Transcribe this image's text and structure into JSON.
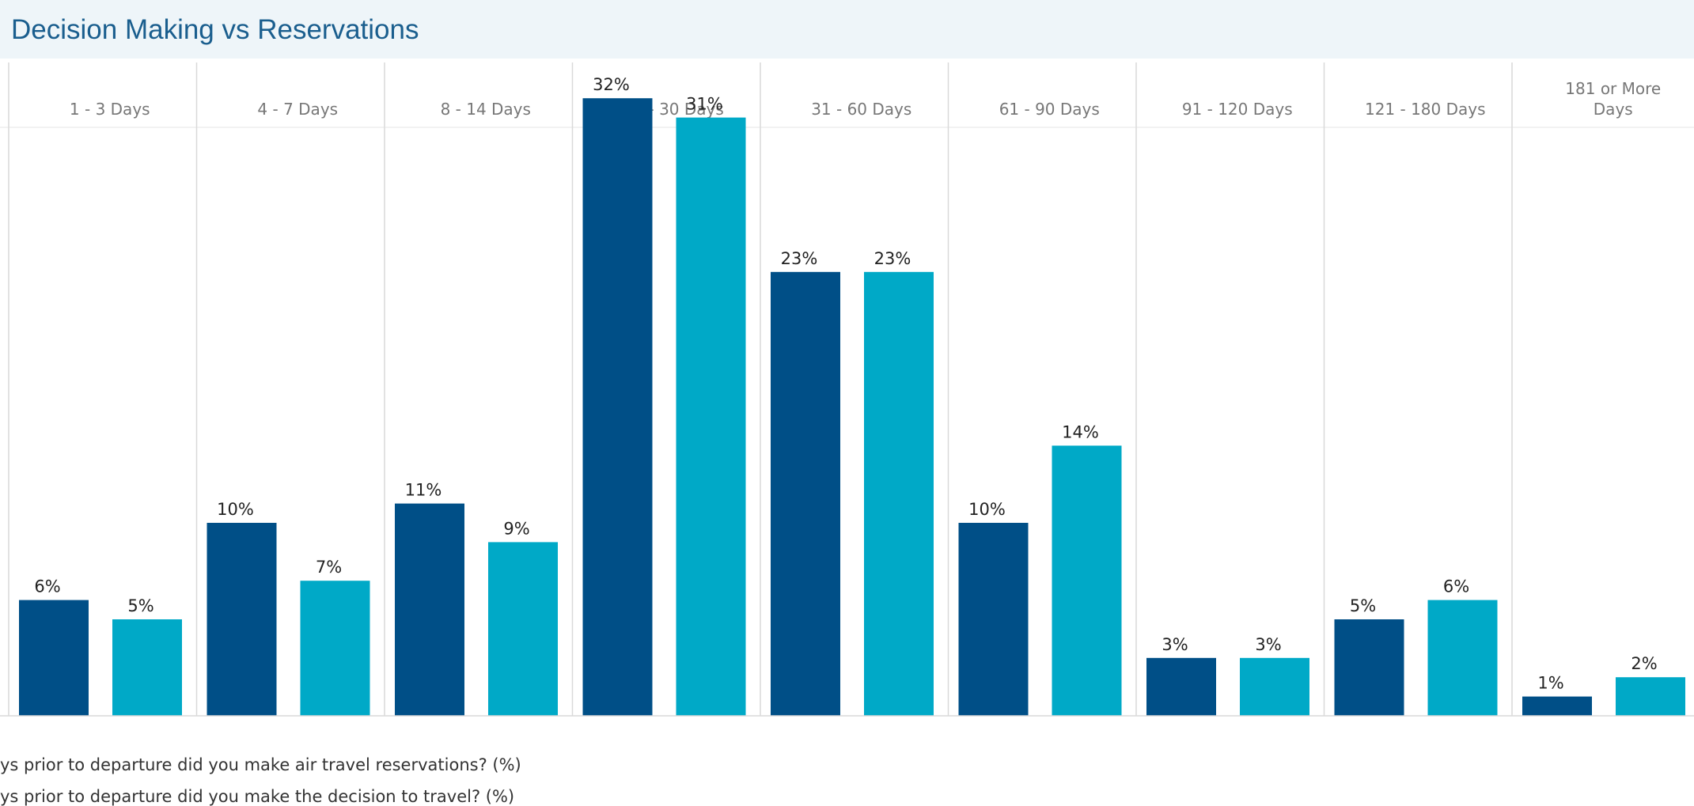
{
  "title": "Decision Making vs Reservations",
  "colors": {
    "dark": "#004f87",
    "light": "#00a9c7",
    "grid": "#d9d9d9",
    "text": "#222222",
    "header_text": "#777777"
  },
  "legend": [
    "ys prior to departure did you make air travel reservations?  (%)",
    "ys prior to departure did you make the decision to travel?  (%)"
  ],
  "chart_data": {
    "type": "bar",
    "title": "Decision Making vs Reservations",
    "categories": [
      "1 - 3 Days",
      "4 - 7 Days",
      "8 - 14 Days",
      "15 - 30 Days",
      "31 - 60 Days",
      "61 - 90 Days",
      "91 - 120 Days",
      "121 - 180 Days",
      "181 or More Days"
    ],
    "category_labels": [
      [
        "1 - 3 Days"
      ],
      [
        "4 - 7 Days"
      ],
      [
        "8 - 14 Days"
      ],
      [
        "15 - 30 Days"
      ],
      [
        "31 - 60 Days"
      ],
      [
        "61 - 90 Days"
      ],
      [
        "91 - 120 Days"
      ],
      [
        "121 - 180 Days"
      ],
      [
        "181 or More",
        "Days"
      ]
    ],
    "series": [
      {
        "name": "ys prior to departure did you make air travel reservations?  (%)",
        "values": [
          6,
          10,
          11,
          32,
          23,
          10,
          3,
          5,
          1
        ],
        "labels": [
          "6%",
          "10%",
          "11%",
          "32%",
          "23%",
          "10%",
          "3%",
          "5%",
          "1%"
        ]
      },
      {
        "name": "ys prior to departure did you make the decision to travel?  (%)",
        "values": [
          5,
          7,
          9,
          31,
          23,
          14,
          3,
          6,
          2
        ],
        "labels": [
          "5%",
          "7%",
          "9%",
          "31%",
          "23%",
          "14%",
          "3%",
          "6%",
          "2%"
        ]
      }
    ],
    "ylim": [
      0,
      35
    ],
    "xlabel": "",
    "ylabel": "",
    "grid": true
  }
}
